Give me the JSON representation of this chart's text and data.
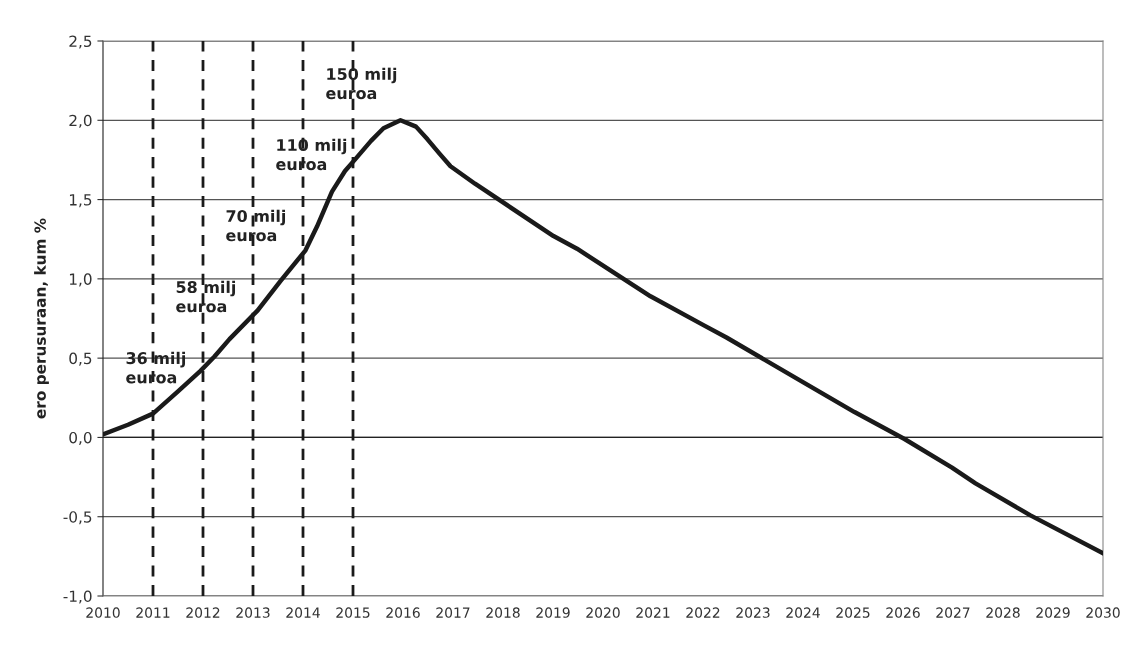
{
  "chart_data": {
    "type": "line",
    "ylabel": "ero perusuraan, kum %",
    "series": [
      {
        "color": "#1a1a1a",
        "x": [
          2010,
          2010.5,
          2011,
          2011.5,
          2011.95,
          2012.23,
          2012.53,
          2013.09,
          2013.56,
          2014.05,
          2014.28,
          2014.58,
          2014.84,
          2015.06,
          2015.36,
          2015.61,
          2015.95,
          2016.26,
          2016.49,
          2016.73,
          2016.95,
          2017.44,
          2019.01,
          2019.48,
          2020.95,
          2022.0,
          2022.47,
          2023.99,
          2025.03,
          2026.03,
          2026.98,
          2027.45,
          2028.54,
          2030
        ],
        "values": [
          0.02,
          0.08,
          0.15,
          0.29,
          0.42,
          0.51,
          0.62,
          0.8,
          0.99,
          1.18,
          1.33,
          1.55,
          1.68,
          1.76,
          1.87,
          1.95,
          2.0,
          1.96,
          1.88,
          1.79,
          1.71,
          1.6,
          1.27,
          1.19,
          0.89,
          0.71,
          0.63,
          0.35,
          0.16,
          -0.01,
          -0.19,
          -0.29,
          -0.49,
          -0.73
        ]
      }
    ],
    "xlim": [
      2010,
      2030
    ],
    "xticks": [
      2010,
      2011,
      2012,
      2013,
      2014,
      2015,
      2016,
      2017,
      2018,
      2019,
      2020,
      2021,
      2022,
      2023,
      2024,
      2025,
      2026,
      2027,
      2028,
      2029,
      2030
    ],
    "ylim": [
      -1.0,
      2.5
    ],
    "yticks": [
      {
        "value": -1.0,
        "label": "-1,0"
      },
      {
        "value": -0.5,
        "label": "-0,5"
      },
      {
        "value": 0.0,
        "label": "0,0"
      },
      {
        "value": 0.5,
        "label": "0,5"
      },
      {
        "value": 1.0,
        "label": "1,0"
      },
      {
        "value": 1.5,
        "label": "1,5"
      },
      {
        "value": 2.0,
        "label": "2,0"
      },
      {
        "value": 2.5,
        "label": "2,5"
      }
    ],
    "ref_lines": [
      {
        "axis": "x",
        "value": 2011,
        "label": "36 milj\neuroa",
        "line_style": "dashed",
        "color": "#1a1a1a"
      },
      {
        "axis": "x",
        "value": 2012,
        "label": "58 milj\neuroa",
        "line_style": "dashed",
        "color": "#1a1a1a"
      },
      {
        "axis": "x",
        "value": 2013,
        "label": "70 milj\neuroa",
        "line_style": "dashed",
        "color": "#1a1a1a"
      },
      {
        "axis": "x",
        "value": 2014,
        "label": "110 milj\neuroa",
        "line_style": "dashed",
        "color": "#1a1a1a"
      },
      {
        "axis": "x",
        "value": 2015,
        "label": "150 milj\neuroa",
        "line_style": "dashed",
        "color": "#1a1a1a"
      }
    ],
    "grid": "y",
    "legend": false,
    "marker": "none",
    "line_style": "solid"
  }
}
